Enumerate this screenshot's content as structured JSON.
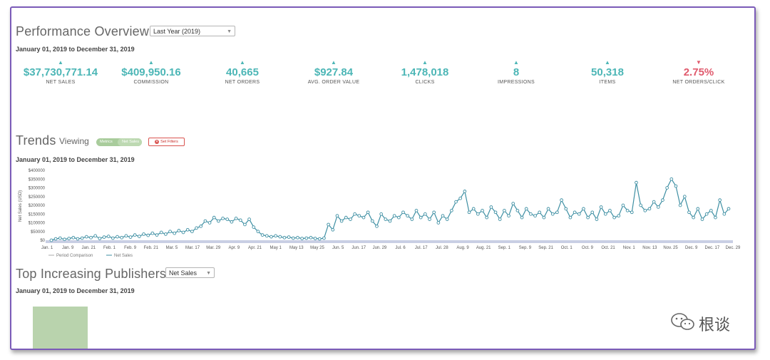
{
  "overview": {
    "title": "Performance Overview",
    "period_select": "Last Year (2019)",
    "date_range": "January 01, 2019 to December 31, 2019"
  },
  "kpis": [
    {
      "value": "$37,730,771.14",
      "label": "NET SALES",
      "trend": "up"
    },
    {
      "value": "$409,950.16",
      "label": "COMMISSION",
      "trend": "up"
    },
    {
      "value": "40,665",
      "label": "NET ORDERS",
      "trend": "up"
    },
    {
      "value": "$927.84",
      "label": "AVG. ORDER VALUE",
      "trend": "up"
    },
    {
      "value": "1,478,018",
      "label": "CLICKS",
      "trend": "up"
    },
    {
      "value": "8",
      "label": "IMPRESSIONS",
      "trend": "up"
    },
    {
      "value": "50,318",
      "label": "ITEMS",
      "trend": "up"
    },
    {
      "value": "2.75%",
      "label": "NET ORDERS/CLICK",
      "trend": "down"
    }
  ],
  "colors": {
    "up": "#4cb6b6",
    "down": "#e05a6d",
    "line": "#3e8fa3",
    "fill": "#cfe3e8"
  },
  "trends": {
    "title": "Trends",
    "viewing_label": "Viewing",
    "toggle_left": "Metrics",
    "toggle_right": "Net Sales",
    "filter_button": "Set Filters",
    "date_range": "January 01, 2019 to December 31, 2019"
  },
  "chart_data": {
    "type": "line",
    "ylabel": "Net Sales (USD)",
    "ylim": [
      0,
      400000
    ],
    "y_ticks": [
      "$0",
      "$50000",
      "$100000",
      "$150000",
      "$200000",
      "$250000",
      "$300000",
      "$350000",
      "$400000"
    ],
    "x_tick_labels": [
      "Jan. 1",
      "Jan. 9",
      "Jan. 21",
      "Feb. 1",
      "Feb. 9",
      "Feb. 21",
      "Mar. 5",
      "Mar. 17",
      "Mar. 29",
      "Apr. 9",
      "Apr. 21",
      "May 1",
      "May 13",
      "May 25",
      "Jun. 5",
      "Jun. 17",
      "Jun. 29",
      "Jul. 6",
      "Jul. 17",
      "Jul. 28",
      "Aug. 9",
      "Aug. 21",
      "Sep. 1",
      "Sep. 9",
      "Sep. 21",
      "Oct. 1",
      "Oct. 9",
      "Oct. 21",
      "Nov. 1",
      "Nov. 13",
      "Nov. 25",
      "Dec. 9",
      "Dec. 17",
      "Dec. 29"
    ],
    "legend": [
      "Period Comparison",
      "Net Sales"
    ],
    "series": [
      {
        "name": "Net Sales",
        "values": [
          0,
          8000,
          12000,
          5000,
          10000,
          15000,
          8000,
          12000,
          20000,
          15000,
          25000,
          10000,
          18000,
          22000,
          12000,
          20000,
          15000,
          25000,
          18000,
          30000,
          22000,
          35000,
          28000,
          40000,
          30000,
          45000,
          35000,
          50000,
          40000,
          55000,
          45000,
          60000,
          50000,
          70000,
          80000,
          110000,
          100000,
          130000,
          110000,
          125000,
          120000,
          105000,
          125000,
          115000,
          90000,
          120000,
          75000,
          50000,
          30000,
          25000,
          20000,
          25000,
          20000,
          15000,
          18000,
          12000,
          15000,
          10000,
          12000,
          15000,
          10000,
          8000,
          12000,
          90000,
          60000,
          140000,
          110000,
          130000,
          120000,
          150000,
          140000,
          130000,
          160000,
          110000,
          80000,
          150000,
          120000,
          110000,
          140000,
          130000,
          160000,
          140000,
          120000,
          170000,
          130000,
          150000,
          120000,
          160000,
          100000,
          140000,
          120000,
          170000,
          220000,
          240000,
          280000,
          160000,
          180000,
          150000,
          170000,
          130000,
          190000,
          160000,
          120000,
          170000,
          140000,
          210000,
          170000,
          130000,
          180000,
          150000,
          140000,
          160000,
          130000,
          180000,
          150000,
          160000,
          230000,
          180000,
          130000,
          160000,
          150000,
          180000,
          130000,
          160000,
          120000,
          190000,
          150000,
          170000,
          130000,
          140000,
          200000,
          170000,
          160000,
          330000,
          200000,
          170000,
          180000,
          220000,
          190000,
          230000,
          300000,
          350000,
          310000,
          200000,
          250000,
          160000,
          130000,
          180000,
          120000,
          150000,
          170000,
          130000,
          230000,
          150000,
          180000
        ]
      }
    ]
  },
  "publishers": {
    "title": "Top Increasing Publishers",
    "metric_select": "Net Sales",
    "date_range": "January 01, 2019 to December 31, 2019"
  },
  "watermark": {
    "text": "根谈"
  }
}
